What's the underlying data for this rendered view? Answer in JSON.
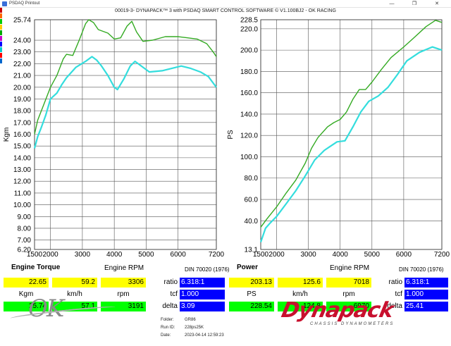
{
  "window": {
    "title": "PSDAQ Printout",
    "buttons": {
      "minimize": "—",
      "restore": "❐",
      "close": "✕"
    }
  },
  "header": {
    "subtitle": "00019-3- DYNAPACK™ 3 with PSDAQ SMART CONTROL SOFTWARE © V1.100BJ2 - OK RACING"
  },
  "colors": {
    "series_upper": "#33aa22",
    "series_lower": "#33dddd",
    "grid": "#555555",
    "brand_red": "#c8102e"
  },
  "sidebar_swatches": [
    "#cc0000",
    "#ff6600",
    "#00cc00",
    "#ffcc00",
    "#00aa00",
    "#cc00cc",
    "#0000ff",
    "#00cccc",
    "#ff0000",
    "#0066cc"
  ],
  "chart_data": [
    {
      "type": "line",
      "ylabel": "Kgm",
      "xlabel": "Engine RPM",
      "xlim": [
        1500,
        7200
      ],
      "ylim": [
        6.2,
        25.74
      ],
      "x_ticks": [
        "1500",
        "2000",
        "3000",
        "4000",
        "5000",
        "6000",
        "7200"
      ],
      "x_tick_values": [
        1500,
        2000,
        3000,
        4000,
        5000,
        6000,
        7200
      ],
      "y_ticks": [
        "25.74",
        "24.00",
        "23.00",
        "22.00",
        "21.00",
        "20.00",
        "19.00",
        "18.00",
        "17.00",
        "16.00",
        "15.00",
        "14.00",
        "13.00",
        "12.00",
        "11.00",
        "10.00",
        "9.00",
        "8.00",
        "7.00",
        "6.20"
      ],
      "y_tick_values": [
        25.74,
        24,
        23,
        22,
        21,
        20,
        19,
        18,
        17,
        16,
        15,
        14,
        13,
        12,
        11,
        10,
        9,
        8,
        7,
        6.2
      ],
      "grid": true,
      "series": [
        {
          "color": "#33aa22",
          "points": [
            [
              1500,
              16.0
            ],
            [
              1600,
              17.2
            ],
            [
              1800,
              18.6
            ],
            [
              2000,
              20.0
            ],
            [
              2200,
              21.0
            ],
            [
              2400,
              22.4
            ],
            [
              2500,
              22.8
            ],
            [
              2700,
              22.7
            ],
            [
              2900,
              24.0
            ],
            [
              3100,
              25.4
            ],
            [
              3200,
              25.74
            ],
            [
              3350,
              25.5
            ],
            [
              3500,
              24.9
            ],
            [
              3800,
              24.6
            ],
            [
              4000,
              24.1
            ],
            [
              4200,
              24.2
            ],
            [
              4400,
              25.2
            ],
            [
              4550,
              25.6
            ],
            [
              4700,
              24.7
            ],
            [
              4900,
              23.9
            ],
            [
              5200,
              24.0
            ],
            [
              5600,
              24.3
            ],
            [
              6000,
              24.3
            ],
            [
              6300,
              24.2
            ],
            [
              6600,
              24.1
            ],
            [
              6900,
              23.7
            ],
            [
              7100,
              23.0
            ],
            [
              7200,
              22.6
            ]
          ]
        },
        {
          "color": "#33dddd",
          "points": [
            [
              1500,
              14.8
            ],
            [
              1600,
              15.8
            ],
            [
              1700,
              16.5
            ],
            [
              1850,
              17.6
            ],
            [
              2000,
              19.0
            ],
            [
              2200,
              19.5
            ],
            [
              2350,
              20.2
            ],
            [
              2500,
              20.8
            ],
            [
              2800,
              21.7
            ],
            [
              3100,
              22.2
            ],
            [
              3300,
              22.6
            ],
            [
              3450,
              22.3
            ],
            [
              3600,
              21.8
            ],
            [
              3800,
              21.0
            ],
            [
              4000,
              20.0
            ],
            [
              4100,
              19.8
            ],
            [
              4300,
              20.7
            ],
            [
              4500,
              21.8
            ],
            [
              4650,
              22.2
            ],
            [
              4850,
              21.8
            ],
            [
              5100,
              21.3
            ],
            [
              5500,
              21.4
            ],
            [
              5800,
              21.6
            ],
            [
              6100,
              21.8
            ],
            [
              6400,
              21.6
            ],
            [
              6700,
              21.3
            ],
            [
              6950,
              20.9
            ],
            [
              7200,
              20.0
            ]
          ]
        }
      ]
    },
    {
      "type": "line",
      "ylabel": "PS",
      "xlabel": "Engine RPM",
      "xlim": [
        1500,
        7200
      ],
      "ylim": [
        13.1,
        228.5
      ],
      "x_ticks": [
        "1500",
        "2000",
        "3000",
        "4000",
        "5000",
        "6000",
        "7200"
      ],
      "x_tick_values": [
        1500,
        2000,
        3000,
        4000,
        5000,
        6000,
        7200
      ],
      "y_ticks": [
        "228.5",
        "220.0",
        "200.0",
        "180.0",
        "160.0",
        "140.0",
        "120.0",
        "100.0",
        "80.0",
        "60.0",
        "40.0",
        "13.1"
      ],
      "y_tick_values": [
        228.5,
        220,
        200,
        180,
        160,
        140,
        120,
        100,
        80,
        60,
        40,
        13.1
      ],
      "grid": true,
      "series": [
        {
          "color": "#33aa22",
          "points": [
            [
              1500,
              34
            ],
            [
              1700,
              42
            ],
            [
              2000,
              53
            ],
            [
              2300,
              66
            ],
            [
              2600,
              78
            ],
            [
              2900,
              94
            ],
            [
              3100,
              108
            ],
            [
              3300,
              118
            ],
            [
              3600,
              128
            ],
            [
              3800,
              132
            ],
            [
              4000,
              135
            ],
            [
              4200,
              142
            ],
            [
              4400,
              154
            ],
            [
              4600,
              163
            ],
            [
              4800,
              163
            ],
            [
              5000,
              170
            ],
            [
              5300,
              182
            ],
            [
              5600,
              193
            ],
            [
              6000,
              203
            ],
            [
              6300,
              211
            ],
            [
              6700,
              222
            ],
            [
              7000,
              228
            ],
            [
              7200,
              226
            ]
          ]
        },
        {
          "color": "#33dddd",
          "points": [
            [
              1500,
              20
            ],
            [
              1650,
              33
            ],
            [
              1800,
              38
            ],
            [
              2000,
              44
            ],
            [
              2300,
              56
            ],
            [
              2600,
              68
            ],
            [
              2900,
              82
            ],
            [
              3200,
              97
            ],
            [
              3500,
              106
            ],
            [
              3700,
              110
            ],
            [
              3900,
              114
            ],
            [
              4150,
              115
            ],
            [
              4400,
              128
            ],
            [
              4650,
              142
            ],
            [
              4900,
              152
            ],
            [
              5200,
              157
            ],
            [
              5500,
              165
            ],
            [
              5800,
              177
            ],
            [
              6100,
              190
            ],
            [
              6500,
              198
            ],
            [
              6900,
              203
            ],
            [
              7200,
              200
            ]
          ]
        }
      ]
    }
  ],
  "torque_panel": {
    "title": "Engine Torque",
    "rpm_label": "Engine RPM",
    "din": "DIN 70020 (1976)",
    "yellow": [
      "22.65",
      "59.2",
      "3306"
    ],
    "units": [
      "Kgm",
      "km/h",
      "rpm"
    ],
    "green": [
      "25.74",
      "57.1",
      "3191"
    ],
    "ratio_label": "ratio",
    "ratio_value": "6.318:1",
    "tcf_label": "tcf",
    "tcf_value": "1.000",
    "delta_label": "delta",
    "delta_value": "3.09"
  },
  "power_panel": {
    "title": "Power",
    "rpm_label": "Engine RPM",
    "din": "DIN 70020 (1976)",
    "yellow": [
      "203.13",
      "125.6",
      "7018"
    ],
    "units": [
      "PS",
      "km/h",
      "rpm"
    ],
    "green": [
      "228.54",
      "124.8",
      "6970"
    ],
    "ratio_label": "ratio",
    "ratio_value": "6.318:1",
    "tcf_label": "tcf",
    "tcf_value": "1.000",
    "delta_label": "delta",
    "delta_value": "25.41"
  },
  "footer": {
    "folder_label": "Folder:",
    "folder": "GR86",
    "run_label": "Run ID:",
    "run": "228ps25K",
    "date_label": "Date:",
    "date": "2023-04-14 12:59:23",
    "logo_left": "OK",
    "logo_right": "Dynapack",
    "logo_tagline": "CHASSIS DYNAMOMETERS"
  }
}
